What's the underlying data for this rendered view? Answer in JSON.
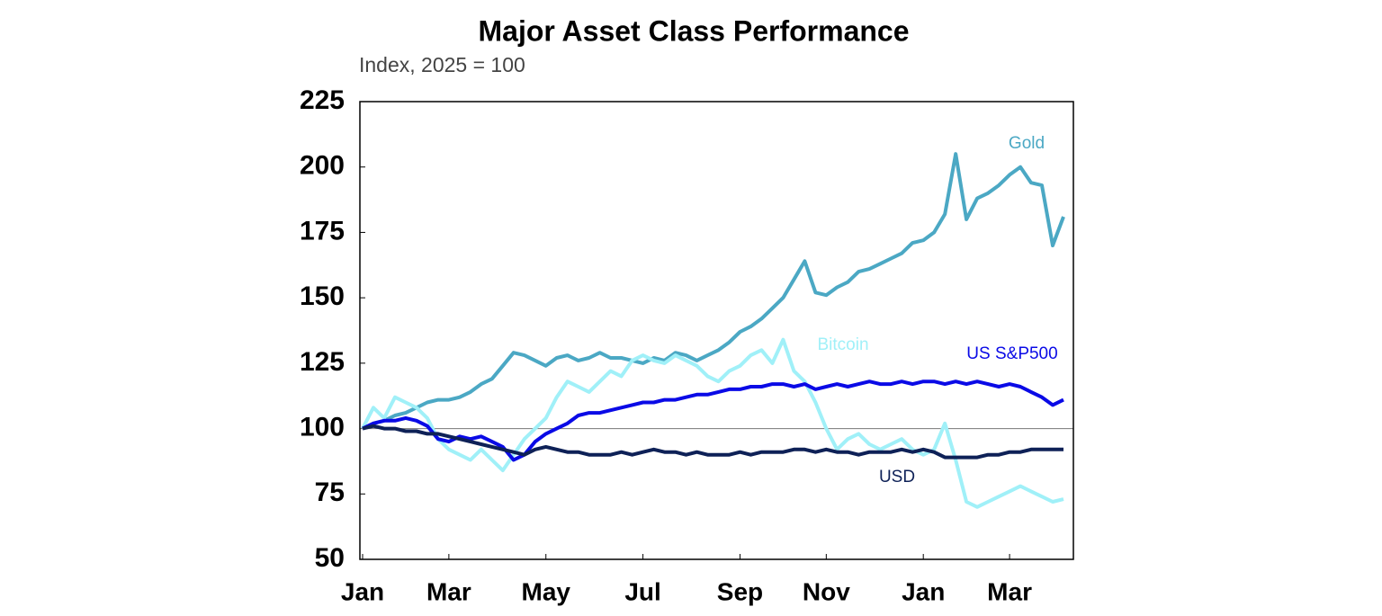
{
  "chart_data": {
    "type": "line",
    "title": "Major Asset Class Performance",
    "subtitle": "Index, 2025 = 100",
    "categories": [
      "Jan",
      null,
      null,
      null,
      null,
      null,
      null,
      null,
      "Mar",
      null,
      null,
      null,
      null,
      null,
      null,
      null,
      null,
      "May",
      null,
      null,
      null,
      null,
      null,
      null,
      null,
      null,
      "Jul",
      null,
      null,
      null,
      null,
      null,
      null,
      null,
      null,
      "Sep",
      null,
      null,
      null,
      null,
      null,
      null,
      null,
      "Nov",
      null,
      null,
      null,
      null,
      null,
      null,
      null,
      null,
      "Jan",
      null,
      null,
      null,
      null,
      null,
      null,
      null,
      "Mar",
      null,
      null,
      null,
      null,
      null
    ],
    "ylim": [
      50,
      225
    ],
    "yticks": [
      50,
      75,
      100,
      125,
      150,
      175,
      200,
      225
    ],
    "reference_line": 100,
    "series": [
      {
        "name": "Gold",
        "color": "#4ba8c4",
        "values": [
          100,
          102,
          103,
          105,
          106,
          108,
          110,
          111,
          111,
          112,
          114,
          117,
          119,
          124,
          129,
          128,
          126,
          124,
          127,
          128,
          126,
          127,
          129,
          127,
          127,
          126,
          125,
          127,
          126,
          129,
          128,
          126,
          128,
          130,
          133,
          137,
          139,
          142,
          146,
          150,
          157,
          164,
          152,
          151,
          154,
          156,
          160,
          161,
          163,
          165,
          167,
          171,
          172,
          175,
          182,
          205,
          180,
          188,
          190,
          193,
          197,
          200,
          194,
          193,
          170,
          181
        ]
      },
      {
        "name": "Bitcoin",
        "color": "#a0f0f8",
        "values": [
          100,
          108,
          104,
          112,
          110,
          108,
          104,
          96,
          92,
          90,
          88,
          92,
          88,
          84,
          90,
          96,
          100,
          104,
          112,
          118,
          116,
          114,
          118,
          122,
          120,
          126,
          128,
          126,
          125,
          128,
          126,
          124,
          120,
          118,
          122,
          124,
          128,
          130,
          125,
          134,
          122,
          118,
          110,
          100,
          92,
          96,
          98,
          94,
          92,
          94,
          96,
          92,
          90,
          92,
          102,
          88,
          72,
          70,
          72,
          74,
          76,
          78,
          76,
          74,
          72,
          73
        ]
      },
      {
        "name": "US S&P500",
        "color": "#0a0ae6",
        "values": [
          100,
          102,
          103,
          103,
          104,
          103,
          101,
          96,
          95,
          97,
          96,
          97,
          95,
          93,
          88,
          90,
          95,
          98,
          100,
          102,
          105,
          106,
          106,
          107,
          108,
          109,
          110,
          110,
          111,
          111,
          112,
          113,
          113,
          114,
          115,
          115,
          116,
          116,
          117,
          117,
          116,
          117,
          115,
          116,
          117,
          116,
          117,
          118,
          117,
          117,
          118,
          117,
          118,
          118,
          117,
          118,
          117,
          118,
          117,
          116,
          117,
          116,
          114,
          112,
          109,
          111
        ]
      },
      {
        "name": "USD",
        "color": "#0e2157",
        "values": [
          100,
          101,
          100,
          100,
          99,
          99,
          98,
          98,
          97,
          96,
          95,
          94,
          93,
          92,
          91,
          90,
          92,
          93,
          92,
          91,
          91,
          90,
          90,
          90,
          91,
          90,
          91,
          92,
          91,
          91,
          90,
          91,
          90,
          90,
          90,
          91,
          90,
          91,
          91,
          91,
          92,
          92,
          91,
          92,
          91,
          91,
          90,
          91,
          91,
          91,
          92,
          91,
          92,
          91,
          89,
          89,
          89,
          89,
          90,
          90,
          91,
          91,
          92,
          92,
          92,
          92
        ]
      }
    ]
  }
}
